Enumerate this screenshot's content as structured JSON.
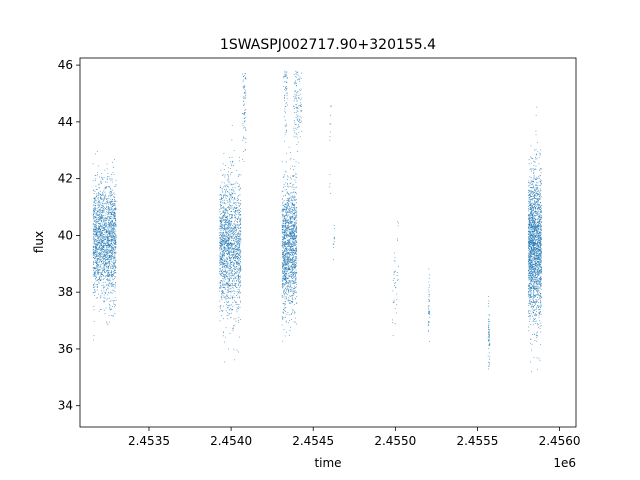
{
  "chart_data": {
    "type": "scatter",
    "title": "1SWASPJ002717.90+320155.4",
    "xlabel": "time",
    "ylabel": "flux",
    "x_offset_label": "1e6",
    "xlim": [
      2453080,
      2456100
    ],
    "ylim": [
      33.25,
      46.25
    ],
    "x_ticks": [
      2453500,
      2454000,
      2454500,
      2455000,
      2455500,
      2456000
    ],
    "x_tick_labels": [
      "2.4535",
      "2.4540",
      "2.4545",
      "2.4550",
      "2.4555",
      "2.4560"
    ],
    "y_ticks": [
      34,
      36,
      38,
      40,
      42,
      44,
      46
    ],
    "y_tick_labels": [
      "34",
      "36",
      "38",
      "40",
      "42",
      "44",
      "46"
    ],
    "grid": false,
    "legend": false,
    "marker_color": "#1f77b4",
    "series": [
      {
        "clusters": [
          {
            "x_range": [
              2453160,
              2453300
            ],
            "flux_mean": 39.8,
            "flux_sd": 1.0,
            "count": 1800
          },
          {
            "x_range": [
              2453930,
              2454060
            ],
            "flux_mean": 39.6,
            "flux_sd": 1.2,
            "count": 1600
          },
          {
            "x_range": [
              2454070,
              2454090
            ],
            "flux_mean": 44.5,
            "flux_sd": 0.8,
            "count": 70
          },
          {
            "x_range": [
              2454310,
              2454400
            ],
            "flux_mean": 39.6,
            "flux_sd": 1.1,
            "count": 1400
          },
          {
            "x_range": [
              2454380,
              2454430
            ],
            "flux_mean": 44.6,
            "flux_sd": 0.8,
            "count": 120
          },
          {
            "x_range": [
              2454320,
              2454345
            ],
            "flux_mean": 44.8,
            "flux_sd": 0.7,
            "count": 60
          },
          {
            "x_range": [
              2454600,
              2454610
            ],
            "flux_mean": 43.5,
            "flux_sd": 1.5,
            "count": 12
          },
          {
            "x_range": [
              2454620,
              2454630
            ],
            "flux_mean": 39.8,
            "flux_sd": 0.3,
            "count": 12
          },
          {
            "x_range": [
              2454980,
              2455010
            ],
            "flux_mean": 38.2,
            "flux_sd": 0.8,
            "count": 30
          },
          {
            "x_range": [
              2455010,
              2455020
            ],
            "flux_mean": 39.2,
            "flux_sd": 0.7,
            "count": 10
          },
          {
            "x_range": [
              2455200,
              2455210
            ],
            "flux_mean": 37.4,
            "flux_sd": 0.6,
            "count": 40
          },
          {
            "x_range": [
              2455565,
              2455575
            ],
            "flux_mean": 36.4,
            "flux_sd": 0.6,
            "count": 60
          },
          {
            "x_range": [
              2455810,
              2455890
            ],
            "flux_mean": 39.6,
            "flux_sd": 1.3,
            "count": 2000
          }
        ]
      }
    ]
  }
}
